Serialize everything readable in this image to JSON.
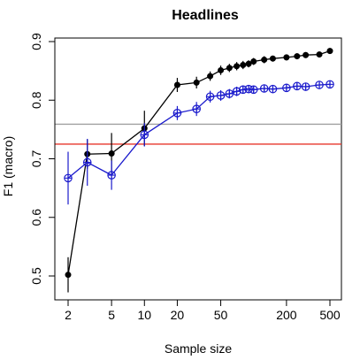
{
  "chart_data": {
    "type": "line",
    "title": "Headlines",
    "xlabel": "Sample size",
    "ylabel": "F1 (macro)",
    "x_scale": "log",
    "xlim": [
      2,
      500
    ],
    "ylim": [
      0.5,
      0.9
    ],
    "x_ticks": [
      2,
      5,
      10,
      20,
      50,
      200,
      500
    ],
    "y_ticks": [
      0.5,
      0.6,
      0.7,
      0.8,
      0.9
    ],
    "grid": false,
    "legend": "none",
    "reference_lines": [
      {
        "y": 0.759,
        "color": "#a0a0a0"
      },
      {
        "y": 0.725,
        "color": "#e8372c"
      }
    ],
    "series": [
      {
        "color": "#000000",
        "marker": "filled-circle",
        "points": [
          {
            "x": 2,
            "y": 0.502,
            "err": 0.03
          },
          {
            "x": 3,
            "y": 0.708,
            "err": 0.025
          },
          {
            "x": 5,
            "y": 0.709,
            "err": 0.035
          },
          {
            "x": 10,
            "y": 0.752,
            "err": 0.03
          },
          {
            "x": 20,
            "y": 0.826,
            "err": 0.012
          },
          {
            "x": 30,
            "y": 0.83,
            "err": 0.01
          },
          {
            "x": 40,
            "y": 0.841,
            "err": 0.008
          },
          {
            "x": 50,
            "y": 0.851,
            "err": 0.008
          },
          {
            "x": 60,
            "y": 0.855,
            "err": 0.007
          },
          {
            "x": 70,
            "y": 0.858,
            "err": 0.007
          },
          {
            "x": 80,
            "y": 0.86,
            "err": 0.007
          },
          {
            "x": 90,
            "y": 0.862,
            "err": 0.006
          },
          {
            "x": 100,
            "y": 0.866,
            "err": 0.006
          },
          {
            "x": 125,
            "y": 0.869,
            "err": 0.006
          },
          {
            "x": 150,
            "y": 0.871,
            "err": 0.005
          },
          {
            "x": 200,
            "y": 0.873,
            "err": 0.005
          },
          {
            "x": 250,
            "y": 0.875,
            "err": 0.005
          },
          {
            "x": 300,
            "y": 0.877,
            "err": 0.005
          },
          {
            "x": 400,
            "y": 0.878,
            "err": 0.005
          },
          {
            "x": 500,
            "y": 0.884,
            "err": 0.005
          }
        ]
      },
      {
        "color": "#1a1acc",
        "marker": "open-circle-cross",
        "points": [
          {
            "x": 2,
            "y": 0.667,
            "err": 0.045
          },
          {
            "x": 3,
            "y": 0.694,
            "err": 0.04
          },
          {
            "x": 5,
            "y": 0.672,
            "err": 0.025
          },
          {
            "x": 10,
            "y": 0.741,
            "err": 0.02
          },
          {
            "x": 20,
            "y": 0.778,
            "err": 0.012
          },
          {
            "x": 30,
            "y": 0.785,
            "err": 0.012
          },
          {
            "x": 40,
            "y": 0.806,
            "err": 0.01
          },
          {
            "x": 50,
            "y": 0.808,
            "err": 0.009
          },
          {
            "x": 60,
            "y": 0.811,
            "err": 0.008
          },
          {
            "x": 70,
            "y": 0.815,
            "err": 0.008
          },
          {
            "x": 80,
            "y": 0.818,
            "err": 0.007
          },
          {
            "x": 90,
            "y": 0.819,
            "err": 0.007
          },
          {
            "x": 100,
            "y": 0.818,
            "err": 0.006
          },
          {
            "x": 125,
            "y": 0.82,
            "err": 0.006
          },
          {
            "x": 150,
            "y": 0.819,
            "err": 0.006
          },
          {
            "x": 200,
            "y": 0.821,
            "err": 0.006
          },
          {
            "x": 250,
            "y": 0.824,
            "err": 0.005
          },
          {
            "x": 300,
            "y": 0.823,
            "err": 0.005
          },
          {
            "x": 400,
            "y": 0.826,
            "err": 0.005
          },
          {
            "x": 500,
            "y": 0.827,
            "err": 0.005
          }
        ]
      }
    ]
  }
}
